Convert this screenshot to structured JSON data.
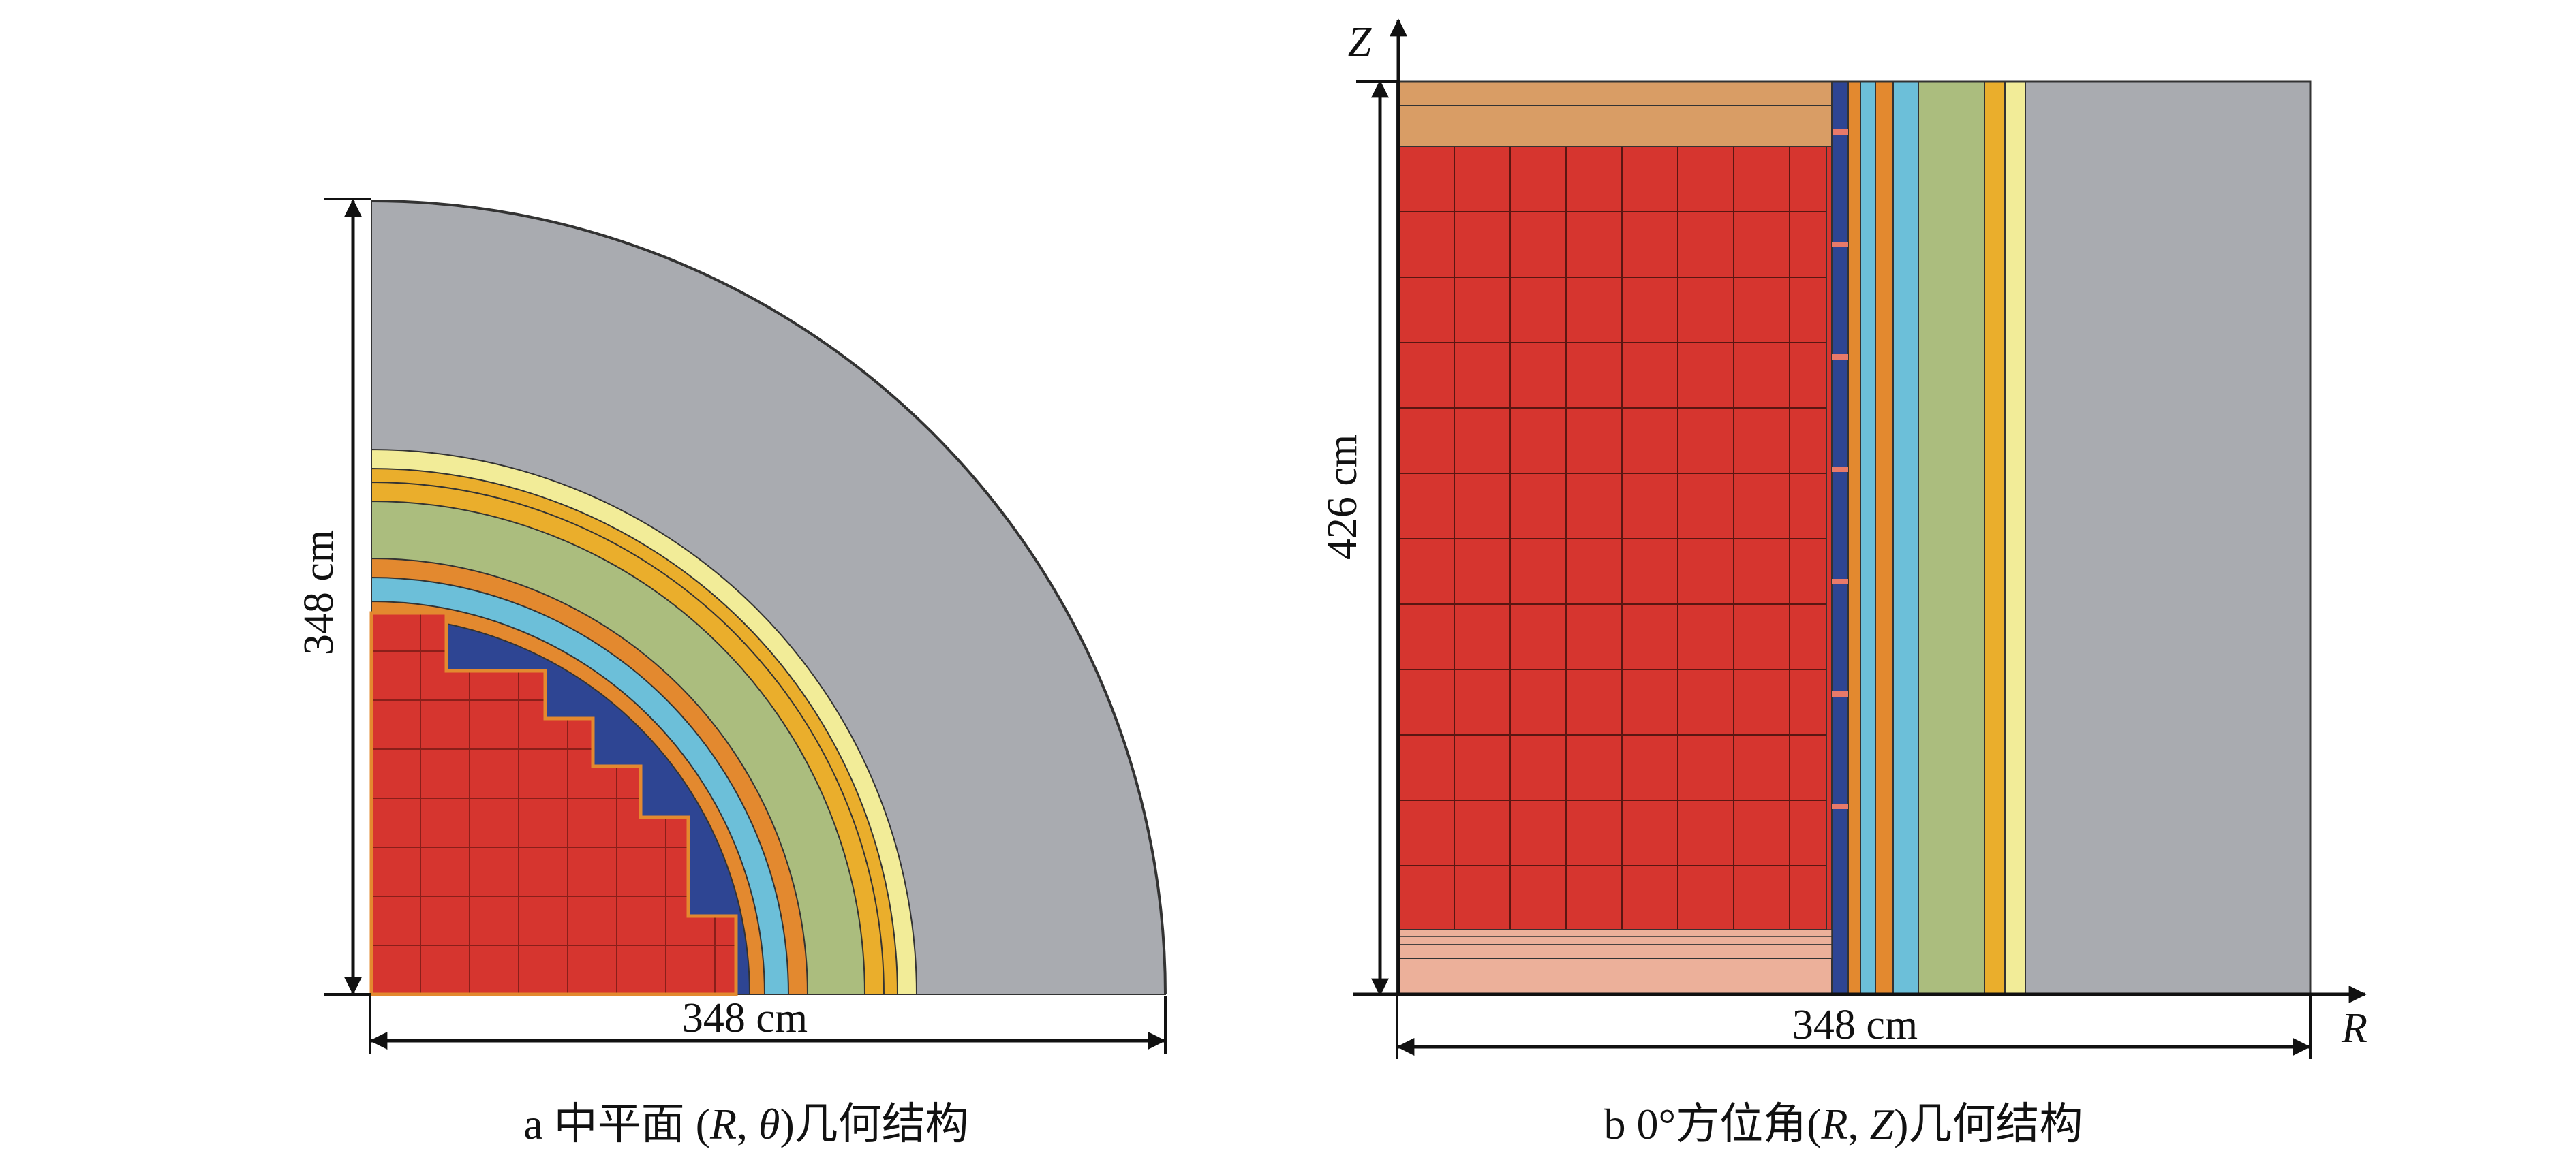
{
  "panel_a": {
    "height_dim": "348 cm",
    "width_dim": "348 cm",
    "caption_prefix": "a  中平面 (",
    "caption_R": "R",
    "caption_sep": ", ",
    "caption_theta": "θ",
    "caption_suffix": ")几何结构"
  },
  "panel_b": {
    "height_dim": "426 cm",
    "width_dim": "348 cm",
    "axis_z": "Z",
    "axis_r": "R",
    "caption_prefix": "b  0°方位角(",
    "caption_R": "R",
    "caption_sep": ", ",
    "caption_Z": "Z",
    "caption_suffix": ")几何结构"
  },
  "colors": {
    "core_red": "#d6352f",
    "core_blue": "#2e4593",
    "orange": "#e3892f",
    "light_blue": "#6cbfd9",
    "green": "#abbd7e",
    "amber": "#eaae2c",
    "light_yellow": "#f2ec98",
    "gray": "#a9abb0",
    "tan": "#d99d65",
    "pink": "#ecb09a"
  }
}
